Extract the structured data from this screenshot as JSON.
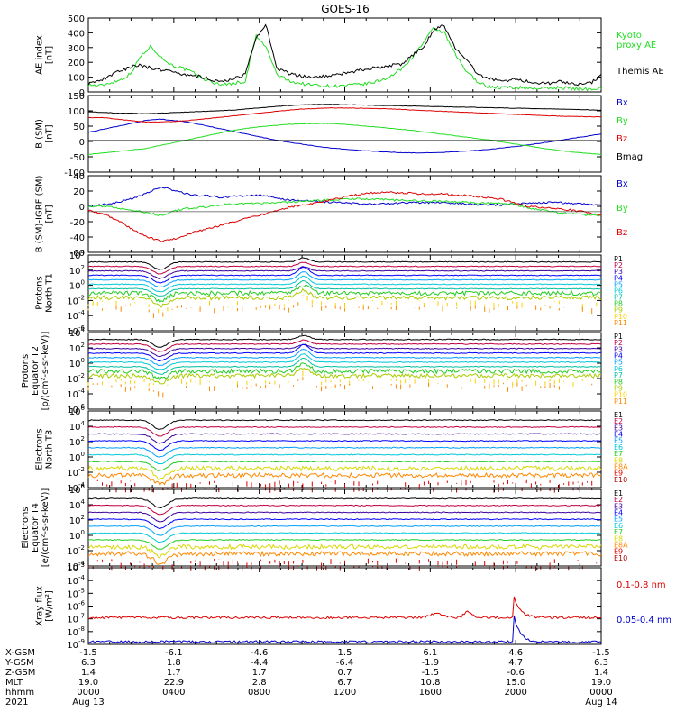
{
  "title": "GOES-16",
  "colors": {
    "black": "#000000",
    "green": "#22dd22",
    "blue": "#0000cc",
    "red": "#dd0000",
    "P": [
      "#000000",
      "#c00040",
      "#3a00a0",
      "#0000ff",
      "#00a0ff",
      "#00c8d8",
      "#00c0a0",
      "#22cc22",
      "#aacc00",
      "#ffd000",
      "#ff8800",
      "#dd0000"
    ],
    "E": [
      "#000000",
      "#c00040",
      "#3a00a0",
      "#0000ff",
      "#00a0ff",
      "#00c8d8",
      "#22cc22",
      "#d8d800",
      "#ff8800",
      "#dd0000",
      "#aa0000"
    ]
  },
  "orbit": {
    "rows": [
      {
        "label": "X-GSM",
        "values": [
          "-1.5",
          "-6.1",
          "-4.6",
          "1.5",
          "6.1",
          "4.6",
          "-1.5"
        ]
      },
      {
        "label": "Y-GSM",
        "values": [
          "6.3",
          "1.8",
          "-4.4",
          "-6.4",
          "-1.9",
          "4.7",
          "6.3"
        ]
      },
      {
        "label": "Z-GSM",
        "values": [
          "1.4",
          "1.7",
          "1.7",
          "0.7",
          "-1.5",
          "-0.6",
          "1.4"
        ]
      },
      {
        "label": "MLT",
        "values": [
          "19.0",
          "22.9",
          "2.8",
          "6.7",
          "10.8",
          "15.0",
          "19.0"
        ]
      },
      {
        "label": "hhmm",
        "values": [
          "0000",
          "0400",
          "0800",
          "1200",
          "1600",
          "2000",
          "0000"
        ]
      },
      {
        "label": "2021",
        "values": [
          "Aug 13",
          "",
          "",
          "",
          "",
          "",
          "Aug 14"
        ]
      }
    ]
  },
  "chart_data": [
    {
      "type": "line",
      "ylabel": "AE index\n[nT]",
      "yticks": [
        "500",
        "400",
        "300",
        "200",
        "100",
        "0"
      ],
      "ylim": [
        0,
        500
      ],
      "x_range_hours": [
        0,
        24
      ],
      "series": [
        {
          "name": "Kyoto\nproxy AE",
          "color": "green",
          "values": [
            50,
            40,
            60,
            80,
            120,
            240,
            310,
            230,
            180,
            160,
            130,
            90,
            60,
            50,
            60,
            70,
            380,
            300,
            120,
            80,
            60,
            50,
            45,
            40,
            40,
            45,
            50,
            60,
            80,
            110,
            160,
            240,
            330,
            430,
            400,
            260,
            150,
            80,
            40,
            30,
            30,
            30,
            25,
            25,
            25,
            30,
            25,
            20,
            20,
            30
          ]
        },
        {
          "name": "Themis AE",
          "color": "black",
          "values": [
            60,
            70,
            110,
            140,
            170,
            180,
            160,
            150,
            140,
            120,
            110,
            100,
            80,
            70,
            90,
            120,
            360,
            450,
            160,
            130,
            110,
            100,
            100,
            110,
            120,
            130,
            150,
            160,
            170,
            180,
            190,
            250,
            300,
            420,
            450,
            300,
            220,
            140,
            90,
            80,
            80,
            80,
            70,
            60,
            60,
            70,
            60,
            50,
            60,
            110
          ]
        }
      ]
    },
    {
      "type": "line",
      "ylabel": "B (SM)\n[nT]",
      "yticks": [
        "150",
        "100",
        "50",
        "0",
        "-50",
        "-100"
      ],
      "ylim": [
        -110,
        150
      ],
      "series": [
        {
          "name": "Bx",
          "color": "blue",
          "values": [
            25,
            35,
            45,
            55,
            65,
            70,
            65,
            60,
            50,
            40,
            30,
            20,
            10,
            0,
            -8,
            -15,
            -22,
            -28,
            -32,
            -36,
            -39,
            -42,
            -44,
            -45,
            -44,
            -43,
            -40,
            -37,
            -33,
            -28,
            -23,
            -17,
            -10,
            -3,
            5,
            12,
            20
          ]
        },
        {
          "name": "By",
          "color": "green",
          "values": [
            -50,
            -45,
            -40,
            -35,
            -30,
            -20,
            -10,
            0,
            10,
            20,
            30,
            38,
            44,
            48,
            52,
            54,
            55,
            55,
            52,
            48,
            44,
            40,
            35,
            30,
            24,
            18,
            12,
            6,
            0,
            -8,
            -15,
            -22,
            -30,
            -36,
            -42,
            -46,
            -50
          ]
        },
        {
          "name": "Bz",
          "color": "red",
          "values": [
            75,
            75,
            70,
            65,
            60,
            60,
            62,
            65,
            70,
            75,
            80,
            85,
            90,
            95,
            100,
            104,
            106,
            108,
            108,
            107,
            106,
            105,
            103,
            100,
            98,
            96,
            94,
            92,
            90,
            88,
            86,
            84,
            82,
            80,
            79,
            78,
            78
          ]
        },
        {
          "name": "Bmag",
          "color": "black",
          "values": [
            95,
            93,
            90,
            90,
            88,
            90,
            92,
            94,
            96,
            98,
            100,
            104,
            108,
            112,
            116,
            118,
            120,
            120,
            119,
            118,
            117,
            116,
            115,
            114,
            113,
            112,
            111,
            110,
            109,
            108,
            107,
            106,
            105,
            104,
            103,
            102,
            100
          ]
        }
      ]
    },
    {
      "type": "line",
      "ylabel": "B (SM)-IGRF (SM)\n[nT]",
      "yticks": [
        "40",
        "20",
        "0",
        "-20",
        "-40",
        "-60"
      ],
      "ylim": [
        -60,
        40
      ],
      "series": [
        {
          "name": "Bx",
          "color": "blue",
          "values": [
            0,
            2,
            5,
            10,
            18,
            25,
            20,
            15,
            14,
            12,
            13,
            14,
            14,
            10,
            8,
            7,
            6,
            5,
            4,
            3,
            3,
            4,
            5,
            5,
            5,
            4,
            3,
            2,
            2,
            3,
            4,
            5,
            5,
            4,
            3,
            2
          ]
        },
        {
          "name": "By",
          "color": "green",
          "values": [
            0,
            0,
            -2,
            -5,
            -8,
            -12,
            -5,
            -2,
            -1,
            2,
            3,
            4,
            4,
            5,
            6,
            7,
            8,
            9,
            10,
            10,
            9,
            8,
            8,
            7,
            7,
            6,
            5,
            4,
            4,
            3,
            -2,
            -5,
            -8,
            -10,
            -11,
            -12
          ]
        },
        {
          "name": "Bz",
          "color": "red",
          "values": [
            -5,
            -10,
            -18,
            -30,
            -40,
            -45,
            -42,
            -35,
            -30,
            -25,
            -20,
            -15,
            -10,
            -5,
            0,
            3,
            6,
            10,
            14,
            17,
            18,
            18,
            17,
            16,
            16,
            15,
            14,
            12,
            10,
            5,
            0,
            -2,
            -3,
            -5,
            -8,
            -12
          ]
        }
      ]
    },
    {
      "type": "line",
      "log": true,
      "ylabel": "Protons\nNorth T1",
      "yticks": [
        "10^4",
        "10^2",
        "10^0",
        "10^-2",
        "10^-4",
        "10^-6"
      ],
      "ylim_exp": [
        -7,
        4
      ],
      "channels": [
        "P1",
        "P2",
        "P3",
        "P4",
        "P5",
        "P6",
        "P7",
        "P8",
        "P9",
        "P10",
        "P11"
      ]
    },
    {
      "type": "line",
      "log": true,
      "ylabel": "Protons\nEquator T2\n[p/(cm²-s-sr-keV)]",
      "yticks": [
        "10^4",
        "10^2",
        "10^0",
        "10^-2",
        "10^-4",
        "10^-6"
      ],
      "ylim_exp": [
        -7,
        4
      ],
      "channels": [
        "P1",
        "P2",
        "P3",
        "P4",
        "P5",
        "P6",
        "P7",
        "P8",
        "P9",
        "P10",
        "P11"
      ]
    },
    {
      "type": "line",
      "log": true,
      "ylabel": "Electrons\nNorth T3",
      "yticks": [
        "10^6",
        "10^4",
        "10^2",
        "10^0",
        "10^-2",
        "10^-4"
      ],
      "ylim_exp": [
        -4,
        6
      ],
      "channels": [
        "E1",
        "E2",
        "E3",
        "E4",
        "E5",
        "E6",
        "E7",
        "E8",
        "E8A",
        "E9",
        "E10"
      ]
    },
    {
      "type": "line",
      "log": true,
      "ylabel": "Electrons\nEquator T4\n[e/(cm²-s-sr-keV)]",
      "yticks": [
        "10^6",
        "10^4",
        "10^2",
        "10^0",
        "10^-2",
        "10^-4"
      ],
      "ylim_exp": [
        -4,
        6
      ],
      "channels": [
        "E1",
        "E2",
        "E3",
        "E4",
        "E5",
        "E6",
        "E7",
        "E8",
        "E8A",
        "E9",
        "E10"
      ]
    },
    {
      "type": "line",
      "log": true,
      "ylabel": "Xray flux\n[W/m²]",
      "yticks": [
        "10^-3",
        "10^-4",
        "10^-5",
        "10^-6",
        "10^-7",
        "10^-8",
        "10^-9"
      ],
      "ylim_exp": [
        -9,
        -3
      ],
      "series": [
        {
          "name": "0.1-0.8 nm",
          "color": "red",
          "log_value": -6.9,
          "flare_time": 0.829
        },
        {
          "name": "0.05-0.4 nm",
          "color": "blue",
          "log_value": -8.8,
          "flare_time": 0.829
        }
      ]
    }
  ]
}
